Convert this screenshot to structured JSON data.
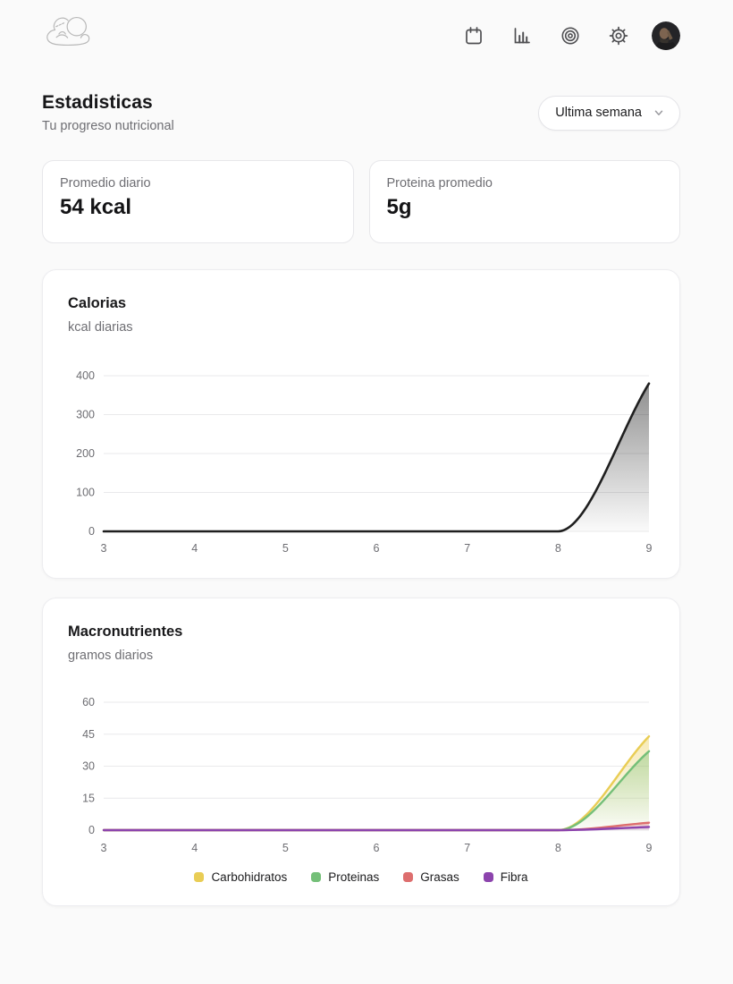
{
  "header": {
    "logo": {
      "name": "sketch-doodle-logo"
    },
    "icons": [
      {
        "name": "calendar-icon"
      },
      {
        "name": "bar-chart-icon"
      },
      {
        "name": "target-icon"
      },
      {
        "name": "settings-gear-icon"
      },
      {
        "name": "user-avatar"
      }
    ]
  },
  "page": {
    "title": "Estadisticas",
    "subtitle": "Tu progreso nutricional"
  },
  "period_select": {
    "value": "Ultima semana"
  },
  "stats": [
    {
      "label": "Promedio diario",
      "value": "54 kcal"
    },
    {
      "label": "Proteina promedio",
      "value": "5g"
    }
  ],
  "chart_data": [
    {
      "type": "area",
      "title": "Calorias",
      "subtitle": "kcal diarias",
      "x": [
        3,
        4,
        5,
        6,
        7,
        8,
        9
      ],
      "xlabel": "",
      "ylabel": "",
      "ylim": [
        0,
        400
      ],
      "yticks": [
        0,
        100,
        200,
        300,
        400
      ],
      "grid": "horizontal",
      "legend": false,
      "series": [
        {
          "name": "Calorias",
          "color": "#1f1f1f",
          "values": [
            0,
            0,
            0,
            0,
            0,
            0,
            380
          ]
        }
      ]
    },
    {
      "type": "area",
      "title": "Macronutrientes",
      "subtitle": "gramos diarios",
      "x": [
        3,
        4,
        5,
        6,
        7,
        8,
        9
      ],
      "xlabel": "",
      "ylabel": "",
      "ylim": [
        0,
        60
      ],
      "yticks": [
        0,
        15,
        30,
        45,
        60
      ],
      "grid": "horizontal",
      "legend": true,
      "legend_position": "bottom",
      "series": [
        {
          "name": "Carbohidratos",
          "color": "#e9cd55",
          "values": [
            0,
            0,
            0,
            0,
            0,
            0,
            44
          ]
        },
        {
          "name": "Proteinas",
          "color": "#74bf78",
          "values": [
            0,
            0,
            0,
            0,
            0,
            0,
            37
          ]
        },
        {
          "name": "Grasas",
          "color": "#dd6e6e",
          "values": [
            0,
            0,
            0,
            0,
            0,
            0,
            3.5
          ]
        },
        {
          "name": "Fibra",
          "color": "#8c44ad",
          "values": [
            0,
            0,
            0,
            0,
            0,
            0,
            1.5
          ]
        }
      ]
    }
  ],
  "colors": {
    "page_background": "#fafafa",
    "card_background": "#ffffff",
    "text_primary": "#1b1b1d",
    "text_secondary": "#6e6e73",
    "grid_line": "#e9e9eb",
    "axis_label": "#6d6d72"
  }
}
